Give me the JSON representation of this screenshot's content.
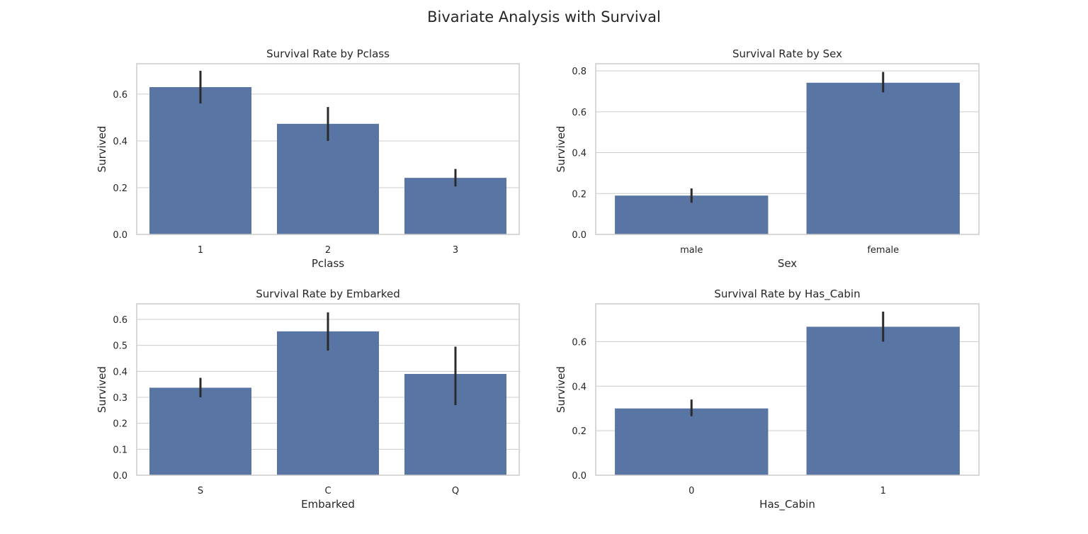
{
  "figure": {
    "suptitle": "Bivariate Analysis with Survival"
  },
  "colors": {
    "bar": "#5975a4",
    "errorbar": "#2b2b2b",
    "grid": "#cccccc",
    "spine": "#cccccc",
    "text": "#262626",
    "background": "#ffffff"
  },
  "chart_data": [
    {
      "type": "bar",
      "title": "Survival Rate by Pclass",
      "xlabel": "Pclass",
      "ylabel": "Survived",
      "categories": [
        "1",
        "2",
        "3"
      ],
      "values": [
        0.63,
        0.473,
        0.242
      ],
      "error_low": [
        0.56,
        0.4,
        0.205
      ],
      "error_high": [
        0.7,
        0.545,
        0.28
      ],
      "ylim": [
        0,
        0.73
      ],
      "yticks": [
        0.0,
        0.2,
        0.4,
        0.6
      ],
      "ytick_labels": [
        "0.0",
        "0.2",
        "0.4",
        "0.6"
      ],
      "grid": true,
      "legend": false
    },
    {
      "type": "bar",
      "title": "Survival Rate by Sex",
      "xlabel": "Sex",
      "ylabel": "Survived",
      "categories": [
        "male",
        "female"
      ],
      "values": [
        0.19,
        0.742
      ],
      "error_low": [
        0.155,
        0.695
      ],
      "error_high": [
        0.225,
        0.795
      ],
      "ylim": [
        0,
        0.835
      ],
      "yticks": [
        0.0,
        0.2,
        0.4,
        0.6,
        0.8
      ],
      "ytick_labels": [
        "0.0",
        "0.2",
        "0.4",
        "0.6",
        "0.8"
      ],
      "grid": true,
      "legend": false
    },
    {
      "type": "bar",
      "title": "Survival Rate by Embarked",
      "xlabel": "Embarked",
      "ylabel": "Survived",
      "categories": [
        "S",
        "C",
        "Q"
      ],
      "values": [
        0.337,
        0.554,
        0.39
      ],
      "error_low": [
        0.3,
        0.48,
        0.27
      ],
      "error_high": [
        0.375,
        0.627,
        0.495
      ],
      "ylim": [
        0,
        0.66
      ],
      "yticks": [
        0.0,
        0.1,
        0.2,
        0.3,
        0.4,
        0.5,
        0.6
      ],
      "ytick_labels": [
        "0.0",
        "0.1",
        "0.2",
        "0.3",
        "0.4",
        "0.5",
        "0.6"
      ],
      "grid": true,
      "legend": false
    },
    {
      "type": "bar",
      "title": "Survival Rate by Has_Cabin",
      "xlabel": "Has_Cabin",
      "ylabel": "Survived",
      "categories": [
        "0",
        "1"
      ],
      "values": [
        0.3,
        0.667
      ],
      "error_low": [
        0.265,
        0.6
      ],
      "error_high": [
        0.34,
        0.735
      ],
      "ylim": [
        0,
        0.77
      ],
      "yticks": [
        0.0,
        0.2,
        0.4,
        0.6
      ],
      "ytick_labels": [
        "0.0",
        "0.2",
        "0.4",
        "0.6"
      ],
      "grid": true,
      "legend": false
    }
  ]
}
